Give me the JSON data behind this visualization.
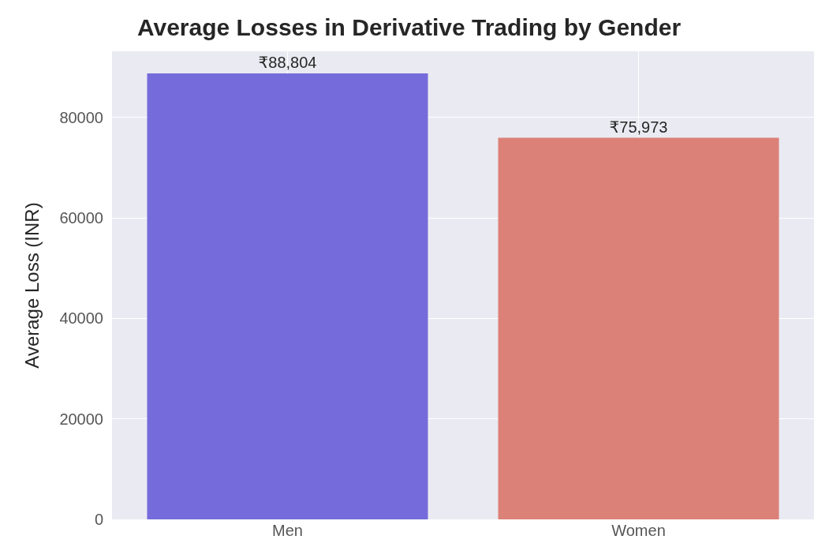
{
  "chart_data": {
    "type": "bar",
    "title": "Average Losses in Derivative Trading by Gender",
    "ylabel": "Average Loss (INR)",
    "categories": [
      "Men",
      "Women"
    ],
    "values": [
      88804,
      75973
    ],
    "value_labels": [
      "₹88,804",
      "₹75,973"
    ],
    "colors": [
      "#756bdb",
      "#db8178"
    ],
    "ylim": [
      0,
      93200
    ],
    "yticks": [
      0,
      20000,
      40000,
      60000,
      80000
    ],
    "grid": true
  }
}
